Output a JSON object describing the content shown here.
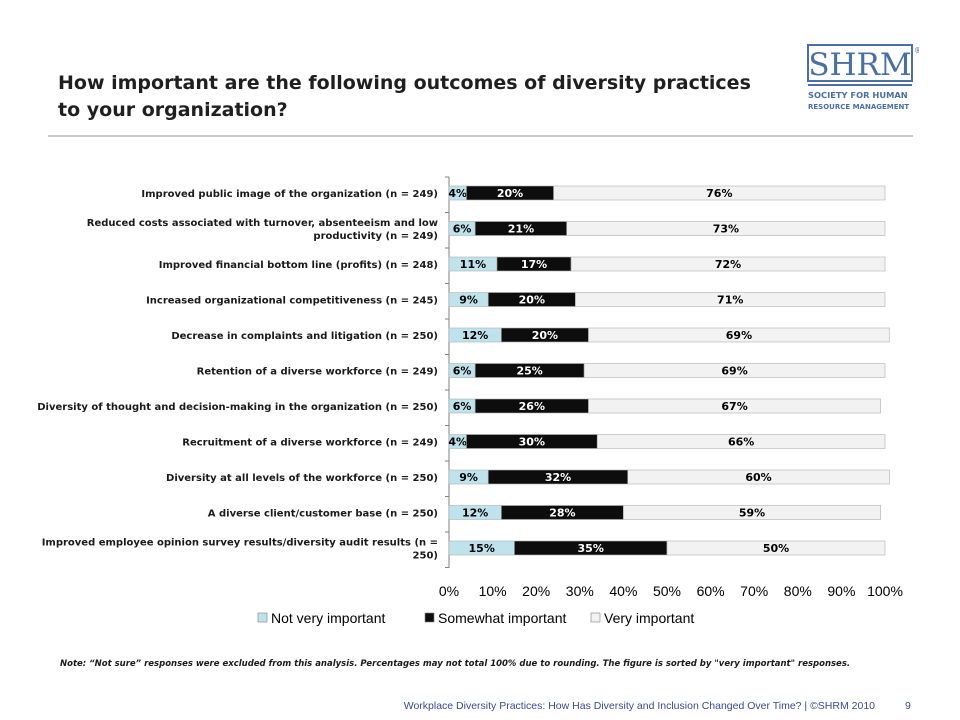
{
  "slide": {
    "title": "How important are the following outcomes of diversity practices to your organization?",
    "note": "Note: “Not sure” responses were excluded from this analysis. Percentages may not total 100% due to rounding. The figure is sorted by \"very important\" responses.",
    "footer": "Workplace Diversity Practices: How Has Diversity and Inclusion Changed Over Time? | ©SHRM 2010",
    "page_number": "9"
  },
  "logo": {
    "mark": "SHRM",
    "trademark": "®",
    "line1": "SOCIETY FOR HUMAN",
    "line2": "RESOURCE MANAGEMENT",
    "color": "#4a6fa5"
  },
  "chart_data": {
    "type": "bar",
    "orientation": "horizontal",
    "stacked": true,
    "categories": [
      "Improved public image of the organization (n = 249)",
      "Reduced costs associated with turnover, absenteeism and low productivity  (n = 249)",
      "Improved financial bottom line (profits)  (n = 248)",
      "Increased organizational competitiveness  (n = 245)",
      "Decrease in complaints and litigation  (n = 250)",
      "Retention of a diverse workforce  (n = 249)",
      "Diversity of thought and decision-making in the organization  (n = 250)",
      "Recruitment of a diverse workforce  (n = 249)",
      "Diversity at all levels of the workforce (n = 250)",
      "A diverse client/customer base  (n = 250)",
      "Improved employee opinion survey results/diversity audit results  (n = 250)"
    ],
    "series": [
      {
        "name": "Not very important",
        "color": "#bfe3ec",
        "label_color": "#000000",
        "values": [
          4,
          6,
          11,
          9,
          12,
          6,
          6,
          4,
          9,
          12,
          15
        ]
      },
      {
        "name": "Somewhat important",
        "color": "#0d0d0d",
        "label_color": "#ffffff",
        "values": [
          20,
          21,
          17,
          20,
          20,
          25,
          26,
          30,
          32,
          28,
          35
        ]
      },
      {
        "name": "Very important",
        "color": "#f2f2f2",
        "label_color": "#000000",
        "values": [
          76,
          73,
          72,
          71,
          69,
          69,
          67,
          66,
          60,
          59,
          50
        ]
      }
    ],
    "value_suffix": "%",
    "x_ticks": [
      "0%",
      "10%",
      "20%",
      "30%",
      "40%",
      "50%",
      "60%",
      "70%",
      "80%",
      "90%",
      "100%"
    ],
    "xlim": [
      0,
      100
    ],
    "grid": false,
    "legend_position": "bottom"
  }
}
